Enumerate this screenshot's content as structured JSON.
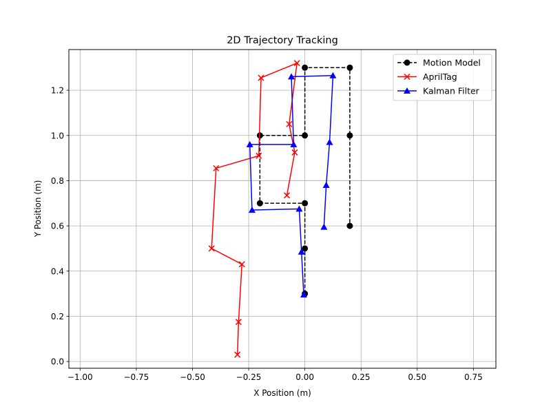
{
  "chart_data": {
    "type": "line",
    "title": "2D Trajectory Tracking",
    "xlabel": "X Position (m)",
    "ylabel": "Y Position (m)",
    "xlim": [
      -1.05,
      0.85
    ],
    "ylim": [
      -0.03,
      1.38
    ],
    "xticks": [
      -1.0,
      -0.75,
      -0.5,
      -0.25,
      0.0,
      0.25,
      0.5,
      0.75
    ],
    "xtick_labels": [
      "−1.00",
      "−0.75",
      "−0.50",
      "−0.25",
      "0.00",
      "0.25",
      "0.50",
      "0.75"
    ],
    "yticks": [
      0.0,
      0.2,
      0.4,
      0.6,
      0.8,
      1.0,
      1.2
    ],
    "ytick_labels": [
      "0.0",
      "0.2",
      "0.4",
      "0.6",
      "0.8",
      "1.0",
      "1.2"
    ],
    "grid": true,
    "legend_position": "top-right",
    "series": [
      {
        "name": "Motion Model",
        "color": "#000000",
        "line_style": "dashed",
        "marker": "circle",
        "x": [
          0.0,
          0.0,
          0.0,
          -0.2,
          -0.2,
          0.0,
          0.0,
          0.2,
          0.2,
          0.2
        ],
        "y": [
          0.3,
          0.5,
          0.7,
          0.7,
          1.0,
          1.0,
          1.3,
          1.3,
          1.0,
          0.6
        ]
      },
      {
        "name": "AprilTag",
        "color": "#ff0000",
        "line_style": "solid",
        "marker": "x",
        "x": [
          -0.3,
          -0.295,
          -0.28,
          -0.415,
          -0.395,
          -0.205,
          -0.195,
          -0.035,
          -0.07,
          -0.045,
          -0.08
        ],
        "y": [
          0.03,
          0.175,
          0.43,
          0.5,
          0.855,
          0.91,
          1.255,
          1.32,
          1.05,
          0.925,
          0.735
        ]
      },
      {
        "name": "Kalman Filter",
        "color": "#0000ff",
        "line_style": "solid",
        "marker": "triangle",
        "x": [
          -0.005,
          -0.015,
          -0.025,
          -0.235,
          -0.245,
          -0.05,
          -0.06,
          0.125,
          0.11,
          0.095,
          0.085
        ],
        "y": [
          0.295,
          0.485,
          0.675,
          0.67,
          0.96,
          0.96,
          1.26,
          1.265,
          0.97,
          0.78,
          0.595
        ]
      }
    ]
  }
}
